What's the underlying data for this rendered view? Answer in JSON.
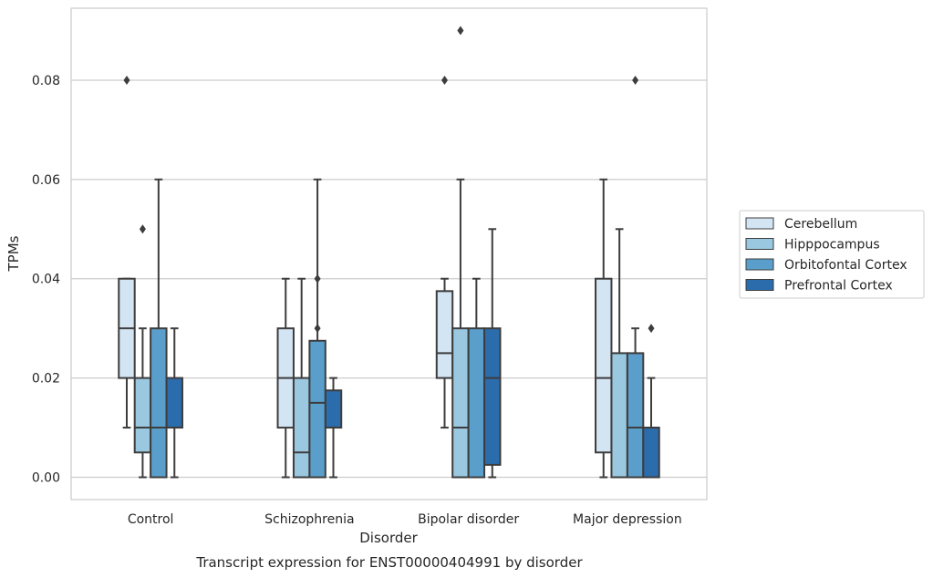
{
  "chart_data": {
    "type": "box",
    "xlabel": "Disorder",
    "ylabel": "TPMs",
    "caption": "Transcript expression for ENST00000404991 by disorder",
    "categories": [
      "Control",
      "Schizophrenia",
      "Bipolar disorder",
      "Major depression"
    ],
    "ylim": [
      -0.0045,
      0.0945
    ],
    "yticks": [
      "0.00",
      "0.02",
      "0.04",
      "0.06",
      "0.08"
    ],
    "grid": "horizontal",
    "legend_position": "right",
    "series": [
      {
        "name": "Cerebellum",
        "color": "#d3e4f3",
        "boxes": [
          {
            "whisker_low": 0.01,
            "q1": 0.02,
            "median": 0.03,
            "q3": 0.04,
            "whisker_high": 0.04,
            "outliers": [
              0.08
            ]
          },
          {
            "whisker_low": 0.0,
            "q1": 0.01,
            "median": 0.02,
            "q3": 0.03,
            "whisker_high": 0.04,
            "outliers": []
          },
          {
            "whisker_low": 0.01,
            "q1": 0.02,
            "median": 0.025,
            "q3": 0.0375,
            "whisker_high": 0.04,
            "outliers": [
              0.08
            ]
          },
          {
            "whisker_low": 0.0,
            "q1": 0.005,
            "median": 0.02,
            "q3": 0.04,
            "whisker_high": 0.06,
            "outliers": []
          }
        ]
      },
      {
        "name": "Hipppocampus",
        "color": "#9ac8e0",
        "boxes": [
          {
            "whisker_low": 0.0,
            "q1": 0.005,
            "median": 0.01,
            "q3": 0.02,
            "whisker_high": 0.03,
            "outliers": [
              0.05
            ]
          },
          {
            "whisker_low": 0.0,
            "q1": 0.0,
            "median": 0.005,
            "q3": 0.02,
            "whisker_high": 0.04,
            "outliers": []
          },
          {
            "whisker_low": 0.0,
            "q1": 0.0,
            "median": 0.01,
            "q3": 0.03,
            "whisker_high": 0.06,
            "outliers": [
              0.09
            ]
          },
          {
            "whisker_low": 0.0,
            "q1": 0.0,
            "median": 0.0,
            "q3": 0.025,
            "whisker_high": 0.05,
            "outliers": []
          }
        ]
      },
      {
        "name": "Orbitofontal Cortex",
        "color": "#5a9fcb",
        "boxes": [
          {
            "whisker_low": 0.0,
            "q1": 0.0,
            "median": 0.01,
            "q3": 0.03,
            "whisker_high": 0.06,
            "outliers": []
          },
          {
            "whisker_low": 0.0,
            "q1": 0.0,
            "median": 0.015,
            "q3": 0.0275,
            "whisker_high": 0.06,
            "outliers": [
              0.03,
              0.04
            ]
          },
          {
            "whisker_low": 0.0,
            "q1": 0.0,
            "median": 0.0,
            "q3": 0.03,
            "whisker_high": 0.04,
            "outliers": []
          },
          {
            "whisker_low": 0.0,
            "q1": 0.0,
            "median": 0.01,
            "q3": 0.025,
            "whisker_high": 0.03,
            "outliers": [
              0.08
            ]
          }
        ]
      },
      {
        "name": "Prefrontal Cortex",
        "color": "#2b6cad",
        "boxes": [
          {
            "whisker_low": 0.0,
            "q1": 0.01,
            "median": 0.01,
            "q3": 0.02,
            "whisker_high": 0.03,
            "outliers": []
          },
          {
            "whisker_low": 0.0,
            "q1": 0.01,
            "median": 0.01,
            "q3": 0.0175,
            "whisker_high": 0.02,
            "outliers": []
          },
          {
            "whisker_low": 0.0,
            "q1": 0.0025,
            "median": 0.02,
            "q3": 0.03,
            "whisker_high": 0.05,
            "outliers": []
          },
          {
            "whisker_low": 0.0,
            "q1": 0.0,
            "median": 0.01,
            "q3": 0.01,
            "whisker_high": 0.02,
            "outliers": [
              0.03
            ]
          }
        ]
      }
    ]
  }
}
